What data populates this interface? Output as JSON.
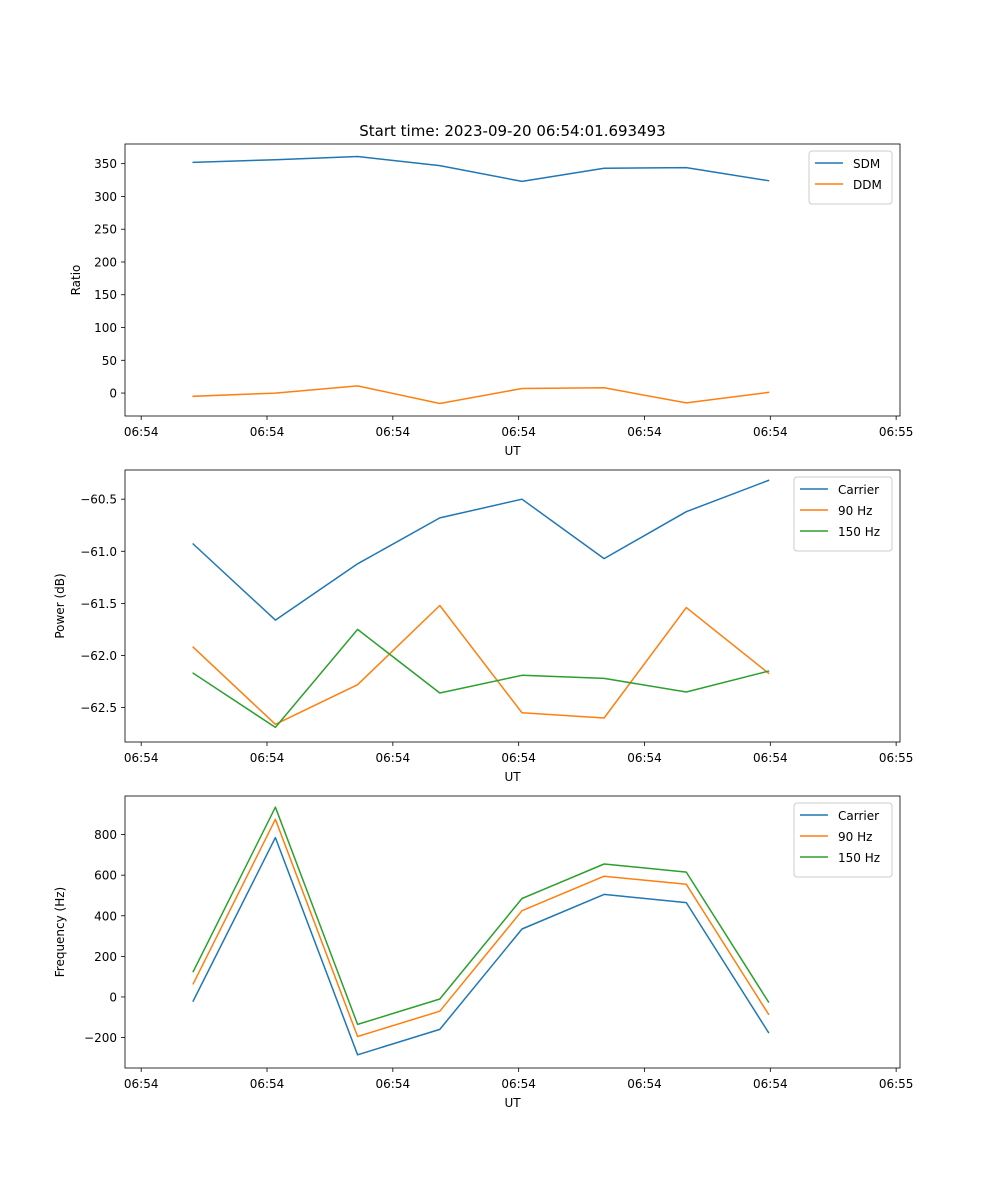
{
  "figure_title": "Start time: 2023-09-20 06:54:01.693493",
  "colors": {
    "c0": "#1f77b4",
    "c1": "#ff7f0e",
    "c2": "#2ca02c"
  },
  "chart_data": [
    {
      "type": "line",
      "title": "Start time: 2023-09-20 06:54:01.693493",
      "xlabel": "UT",
      "ylabel": "Ratio",
      "x": [
        1,
        2,
        3,
        4,
        5,
        6,
        7,
        8
      ],
      "xlim": [
        0.17,
        9.6
      ],
      "ylim": [
        -35,
        380
      ],
      "xticks": [
        0.367,
        1.898,
        3.429,
        4.96,
        6.491,
        8.022,
        9.553
      ],
      "xtick_labels": [
        "06:54",
        "06:54",
        "06:54",
        "06:54",
        "06:54",
        "06:54",
        "06:55"
      ],
      "yticks": [
        0,
        50,
        100,
        150,
        200,
        250,
        300,
        350
      ],
      "ytick_labels": [
        "0",
        "50",
        "100",
        "150",
        "200",
        "250",
        "300",
        "350"
      ],
      "legend_loc": "top-right",
      "series": [
        {
          "name": "SDM",
          "color": "#1f77b4",
          "values": [
            352,
            356,
            361,
            347,
            323,
            343,
            344,
            324
          ]
        },
        {
          "name": "DDM",
          "color": "#ff7f0e",
          "values": [
            -5,
            0,
            11,
            -16,
            7,
            8,
            -15,
            1
          ]
        }
      ]
    },
    {
      "type": "line",
      "title": "",
      "xlabel": "UT",
      "ylabel": "Power (dB)",
      "x": [
        1,
        2,
        3,
        4,
        5,
        6,
        7,
        8
      ],
      "xlim": [
        0.17,
        9.6
      ],
      "ylim": [
        -62.83,
        -60.22
      ],
      "xticks": [
        0.367,
        1.898,
        3.429,
        4.96,
        6.491,
        8.022,
        9.553
      ],
      "xtick_labels": [
        "06:54",
        "06:54",
        "06:54",
        "06:54",
        "06:54",
        "06:54",
        "06:55"
      ],
      "yticks": [
        -62.5,
        -62.0,
        -61.5,
        -61.0,
        -60.5
      ],
      "ytick_labels": [
        "−62.5",
        "−62.0",
        "−61.5",
        "−61.0",
        "−60.5"
      ],
      "legend_loc": "top-right",
      "series": [
        {
          "name": "Carrier",
          "color": "#1f77b4",
          "values": [
            -60.93,
            -61.66,
            -61.12,
            -60.68,
            -60.5,
            -61.07,
            -60.62,
            -60.32
          ]
        },
        {
          "name": "90 Hz",
          "color": "#ff7f0e",
          "values": [
            -61.92,
            -62.66,
            -62.28,
            -61.52,
            -62.55,
            -62.6,
            -61.54,
            -62.17
          ]
        },
        {
          "name": "150 Hz",
          "color": "#2ca02c",
          "values": [
            -62.17,
            -62.69,
            -61.75,
            -62.36,
            -62.19,
            -62.22,
            -62.35,
            -62.15
          ]
        }
      ]
    },
    {
      "type": "line",
      "title": "",
      "xlabel": "UT",
      "ylabel": "Frequency (Hz)",
      "x": [
        1,
        2,
        3,
        4,
        5,
        6,
        7,
        8
      ],
      "xlim": [
        0.17,
        9.6
      ],
      "ylim": [
        -350,
        990
      ],
      "xticks": [
        0.367,
        1.898,
        3.429,
        4.96,
        6.491,
        8.022,
        9.553
      ],
      "xtick_labels": [
        "06:54",
        "06:54",
        "06:54",
        "06:54",
        "06:54",
        "06:54",
        "06:55"
      ],
      "yticks": [
        -200,
        0,
        200,
        400,
        600,
        800
      ],
      "ytick_labels": [
        "−200",
        "0",
        "200",
        "400",
        "600",
        "800"
      ],
      "legend_loc": "top-right",
      "series": [
        {
          "name": "Carrier",
          "color": "#1f77b4",
          "values": [
            -20,
            785,
            -285,
            -160,
            335,
            505,
            465,
            -175
          ]
        },
        {
          "name": "90 Hz",
          "color": "#ff7f0e",
          "values": [
            65,
            875,
            -195,
            -70,
            425,
            595,
            555,
            -85
          ]
        },
        {
          "name": "150 Hz",
          "color": "#2ca02c",
          "values": [
            125,
            935,
            -135,
            -10,
            485,
            655,
            615,
            -25
          ]
        }
      ]
    }
  ]
}
